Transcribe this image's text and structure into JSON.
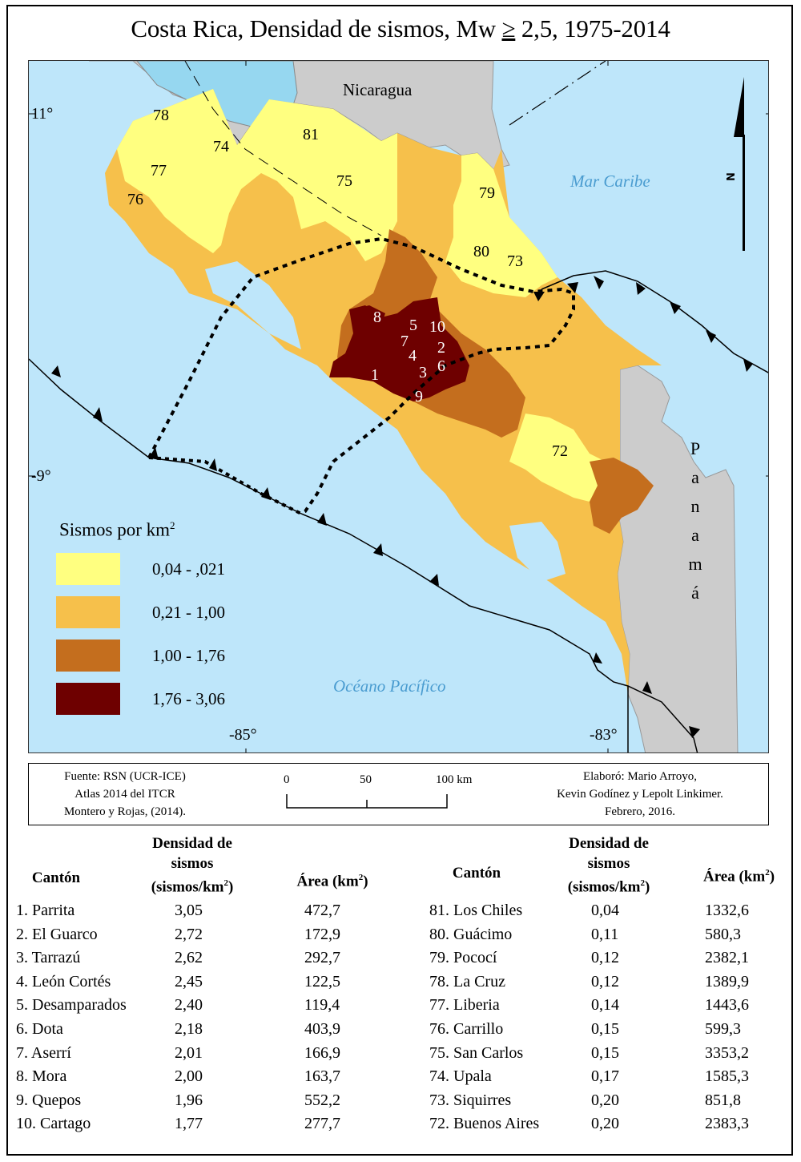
{
  "title": {
    "prefix": "Costa Rica, Densidad de sismos, Mw ",
    "ge": "≥",
    "suffix": " 2,5, 1975-2014"
  },
  "map": {
    "countries": {
      "north": "Nicaragua",
      "south_east": "P a n a m á"
    },
    "seas": {
      "caribbean": "Mar Caribe",
      "pacific": "Océano Pacífico"
    },
    "coords": {
      "lat_11": "11°",
      "lat_9": "-9°",
      "lon_85": "-85°",
      "lon_83": "-83°"
    },
    "north_arrow": {
      "label": "N"
    },
    "canton_labels_high": [
      "1",
      "2",
      "3",
      "4",
      "5",
      "6",
      "7",
      "8",
      "9",
      "10"
    ],
    "canton_labels_low": [
      "72",
      "73",
      "74",
      "75",
      "76",
      "77",
      "78",
      "79",
      "80",
      "81"
    ],
    "colors": {
      "ocean": "#bee6fa",
      "lake": "#96d7f0",
      "neighbor_land": "#cccccc",
      "class_1": "#ffff80",
      "class_2": "#f6c04b",
      "class_3": "#c46e1e",
      "class_4": "#6e0000"
    }
  },
  "legend": {
    "title": "Sismos por km",
    "title_sup": "2",
    "items": [
      {
        "label": "0,04 - ,021",
        "color": "#ffff80"
      },
      {
        "label": "0,21 - 1,00",
        "color": "#f6c04b"
      },
      {
        "label": "1,00 - 1,76",
        "color": "#c46e1e"
      },
      {
        "label": "1,76 - 3,06",
        "color": "#6e0000"
      }
    ]
  },
  "info": {
    "source": [
      "Fuente: RSN (UCR-ICE)",
      "Atlas 2014 del ITCR",
      "Montero y Rojas, (2014)."
    ],
    "scale": {
      "t0": "0",
      "t50": "50",
      "t100": "100 km"
    },
    "authors": [
      "Elaboró: Mario Arroyo,",
      "Kevin Godínez y Lepolt Linkimer.",
      "Febrero, 2016."
    ]
  },
  "tables": {
    "headers": {
      "canton": "Cantón",
      "density_l1": "Densidad de",
      "density_l2": "sismos",
      "density_l3": "(sismos/km",
      "density_sup": "2",
      "density_close": ")",
      "area": "Área (km",
      "area_sup": "2",
      "area_close": ")"
    },
    "highest": [
      {
        "canton": "1. Parrita",
        "density": "3,05",
        "area": "472,7"
      },
      {
        "canton": "2. El Guarco",
        "density": "2,72",
        "area": "172,9"
      },
      {
        "canton": "3. Tarrazú",
        "density": "2,62",
        "area": "292,7"
      },
      {
        "canton": "4. León Cortés",
        "density": "2,45",
        "area": "122,5"
      },
      {
        "canton": "5. Desamparados",
        "density": "2,40",
        "area": "119,4"
      },
      {
        "canton": "6. Dota",
        "density": "2,18",
        "area": "403,9"
      },
      {
        "canton": "7. Aserrí",
        "density": "2,01",
        "area": "166,9"
      },
      {
        "canton": "8. Mora",
        "density": "2,00",
        "area": "163,7"
      },
      {
        "canton": "9. Quepos",
        "density": "1,96",
        "area": "552,2"
      },
      {
        "canton": "10. Cartago",
        "density": "1,77",
        "area": "277,7"
      }
    ],
    "lowest": [
      {
        "canton": "81. Los Chiles",
        "density": "0,04",
        "area": "1332,6"
      },
      {
        "canton": "80. Guácimo",
        "density": "0,11",
        "area": "580,3"
      },
      {
        "canton": "79. Pococí",
        "density": "0,12",
        "area": "2382,1"
      },
      {
        "canton": "78. La Cruz",
        "density": "0,12",
        "area": "1389,9"
      },
      {
        "canton": "77. Liberia",
        "density": "0,14",
        "area": "1443,6"
      },
      {
        "canton": "76. Carrillo",
        "density": "0,15",
        "area": "599,3"
      },
      {
        "canton": "75. San Carlos",
        "density": "0,15",
        "area": "3353,2"
      },
      {
        "canton": "74. Upala",
        "density": "0,17",
        "area": "1585,3"
      },
      {
        "canton": "73. Siquirres",
        "density": "0,20",
        "area": "851,8"
      },
      {
        "canton": "72. Buenos Aires",
        "density": "0,20",
        "area": "2383,3"
      }
    ]
  }
}
